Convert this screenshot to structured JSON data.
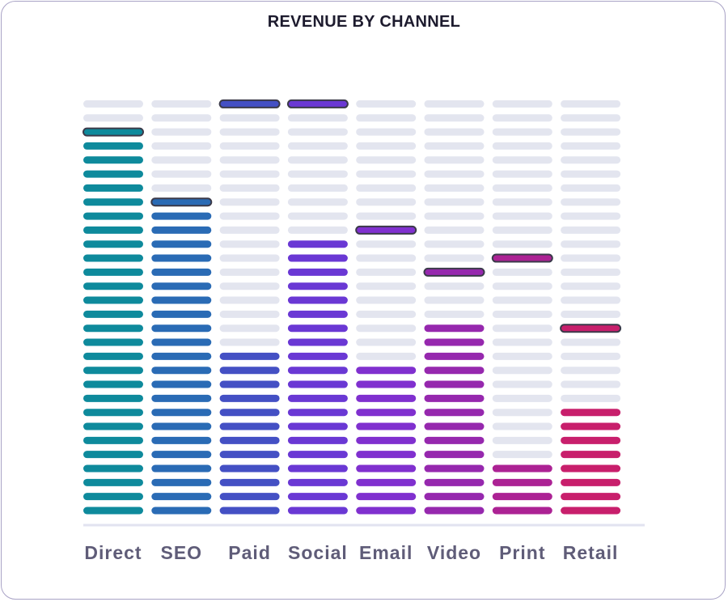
{
  "chart_data": {
    "type": "bar",
    "title": "REVENUE BY CHANNEL",
    "xlabel": "",
    "ylabel": "",
    "categories": [
      "Direct",
      "SEO",
      "Paid",
      "Social",
      "Email",
      "Video",
      "Print",
      "Retail"
    ],
    "values": [
      28,
      23,
      12,
      20,
      11,
      14,
      4,
      8
    ],
    "peak_markers": [
      28,
      23,
      30,
      30,
      21,
      18,
      19,
      14
    ],
    "segment_count": 30,
    "colors": [
      "#0e8a9c",
      "#2a6bb5",
      "#4450c4",
      "#6a38d4",
      "#8030cf",
      "#9628ae",
      "#ac2294",
      "#c81f6c"
    ],
    "empty_color": "#e3e5ef",
    "grid": false,
    "legend": "none"
  }
}
